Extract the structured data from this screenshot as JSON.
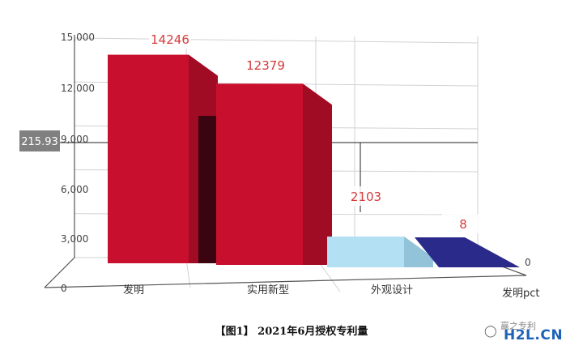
{
  "chart_data": {
    "type": "bar",
    "categories": [
      "发明",
      "实用新型",
      "外观设计",
      "发明pct"
    ],
    "values": [
      14246,
      12379,
      2103,
      8
    ],
    "yticks": [
      "0",
      "3,000",
      "6,000",
      "9,000",
      "12,000",
      "15,000"
    ],
    "ylim": [
      0,
      15000
    ],
    "tooltip_value": "215.93",
    "grid": true,
    "colors": {
      "bar_front": "#c8102e",
      "bar_side": "#a00c24",
      "bar_top": "#e0334c",
      "bar3_front": "#b3e0f2",
      "bar3_top": "#93c3d8",
      "bar4_top": "#2a2a8a",
      "label": "#d63a3a",
      "tooltip_bg": "#808080"
    }
  },
  "caption": "【图1】  2021年6月授权专利量",
  "watermark": {
    "site": "H2L.CN",
    "cn_text": "赢之专利"
  }
}
